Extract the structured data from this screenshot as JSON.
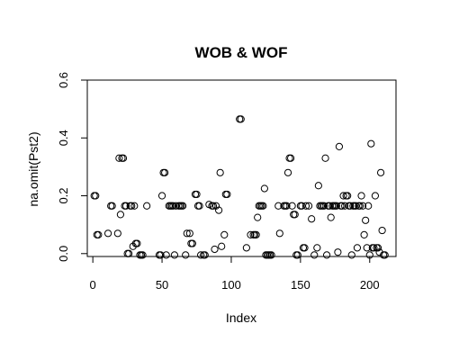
{
  "chart_data": {
    "type": "scatter",
    "title": "WOB & WOF",
    "xlabel": "Index",
    "ylabel": "na.omit(Pst2)",
    "xlim": [
      -4,
      219
    ],
    "ylim": [
      -0.01,
      0.6
    ],
    "x_ticks": [
      0,
      50,
      100,
      150,
      200
    ],
    "y_ticks": [
      0.0,
      0.2,
      0.4,
      0.6
    ],
    "x_tick_labels": [
      "0",
      "50",
      "100",
      "150",
      "200"
    ],
    "y_tick_labels": [
      "0.0",
      "0.2",
      "0.4",
      "0.6"
    ],
    "grid": false,
    "marker": "open-circle",
    "x": [
      1,
      2,
      3,
      4,
      11,
      13,
      14,
      18,
      19,
      20,
      21,
      22,
      23,
      24,
      25,
      26,
      27,
      28,
      29,
      30,
      31,
      32,
      34,
      35,
      36,
      39,
      48,
      49,
      50,
      51,
      52,
      53,
      55,
      56,
      57,
      58,
      59,
      60,
      62,
      63,
      64,
      65,
      67,
      68,
      70,
      71,
      72,
      74,
      75,
      76,
      77,
      78,
      80,
      81,
      84,
      86,
      87,
      88,
      89,
      91,
      92,
      93,
      95,
      96,
      97,
      106,
      107,
      111,
      114,
      116,
      117,
      118,
      119,
      120,
      121,
      122,
      123,
      124,
      125,
      126,
      127,
      128,
      129,
      134,
      135,
      138,
      139,
      140,
      141,
      142,
      143,
      144,
      145,
      146,
      147,
      148,
      150,
      151,
      152,
      153,
      154,
      156,
      158,
      160,
      162,
      163,
      164,
      165,
      166,
      167,
      168,
      169,
      170,
      171,
      172,
      173,
      174,
      175,
      176,
      177,
      178,
      179,
      180,
      181,
      182,
      183,
      184,
      185,
      186,
      187,
      188,
      189,
      190,
      191,
      192,
      193,
      194,
      195,
      196,
      197,
      198,
      199,
      200,
      201,
      202,
      203,
      204,
      205,
      206,
      207,
      208,
      209,
      210,
      211
    ],
    "y": [
      0.2,
      0.2,
      0.065,
      0.065,
      0.07,
      0.165,
      0.165,
      0.07,
      0.33,
      0.135,
      0.33,
      0.33,
      0.165,
      0.165,
      0.0,
      0.0,
      0.165,
      0.165,
      0.025,
      0.165,
      0.035,
      0.035,
      -0.005,
      -0.005,
      -0.005,
      0.165,
      -0.005,
      -0.005,
      0.2,
      0.28,
      0.28,
      -0.005,
      0.165,
      0.165,
      0.165,
      0.165,
      -0.005,
      0.165,
      0.165,
      0.165,
      0.165,
      0.165,
      -0.005,
      0.07,
      0.07,
      0.035,
      0.035,
      0.205,
      0.205,
      0.165,
      0.165,
      -0.005,
      -0.005,
      -0.005,
      0.17,
      0.165,
      0.165,
      0.015,
      0.165,
      0.15,
      0.28,
      0.025,
      0.065,
      0.205,
      0.205,
      0.465,
      0.465,
      0.02,
      0.065,
      0.065,
      0.065,
      0.065,
      0.125,
      0.165,
      0.165,
      0.165,
      0.165,
      0.225,
      -0.005,
      -0.005,
      -0.005,
      -0.005,
      -0.005,
      0.165,
      0.07,
      0.165,
      0.165,
      0.165,
      0.28,
      0.33,
      0.33,
      0.165,
      0.135,
      0.135,
      -0.005,
      -0.005,
      0.165,
      0.165,
      0.02,
      0.02,
      0.165,
      0.165,
      0.12,
      -0.005,
      0.02,
      0.235,
      0.165,
      0.165,
      0.165,
      0.165,
      0.33,
      -0.005,
      0.165,
      0.165,
      0.125,
      0.165,
      0.165,
      0.165,
      0.165,
      0.005,
      0.37,
      0.165,
      0.165,
      0.2,
      0.165,
      0.2,
      0.2,
      0.165,
      0.165,
      -0.005,
      0.165,
      0.165,
      0.165,
      0.02,
      0.165,
      0.165,
      0.2,
      0.165,
      0.065,
      0.115,
      0.02,
      0.165,
      -0.005,
      0.38,
      0.02,
      0.02,
      0.2,
      0.02,
      0.02,
      0.005,
      0.28,
      0.08,
      -0.005,
      -0.005
    ]
  }
}
